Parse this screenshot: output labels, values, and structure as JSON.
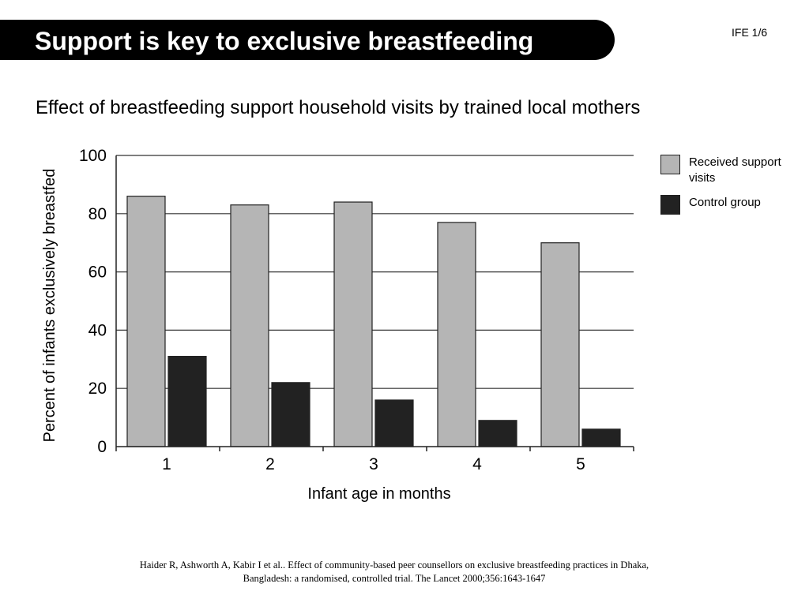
{
  "slide": {
    "title": "Support is key to exclusive breastfeeding",
    "number": "IFE 1/6",
    "subtitle": "Effect of breastfeeding support household visits by trained local mothers",
    "citation": "Haider R, Ashworth A, Kabir I et al.. Effect of community-based peer counsellors on exclusive breastfeeding practices in Dhaka, Bangladesh: a randomised, controlled trial. The Lancet 2000;356:1643-1647"
  },
  "chart_data": {
    "type": "bar",
    "title": "",
    "xlabel": "Infant age in months",
    "ylabel": "Percent of infants exclusively breastfed",
    "categories": [
      "1",
      "2",
      "3",
      "4",
      "5"
    ],
    "series": [
      {
        "name": "Received support visits",
        "values": [
          86,
          83,
          84,
          77,
          70
        ],
        "color": "#b5b5b5"
      },
      {
        "name": "Control group",
        "values": [
          31,
          22,
          16,
          9,
          6
        ],
        "color": "#222222"
      }
    ],
    "ylim": [
      0,
      100
    ],
    "yticks": [
      0,
      20,
      40,
      60,
      80,
      100
    ],
    "grid": true,
    "legend_position": "right"
  }
}
